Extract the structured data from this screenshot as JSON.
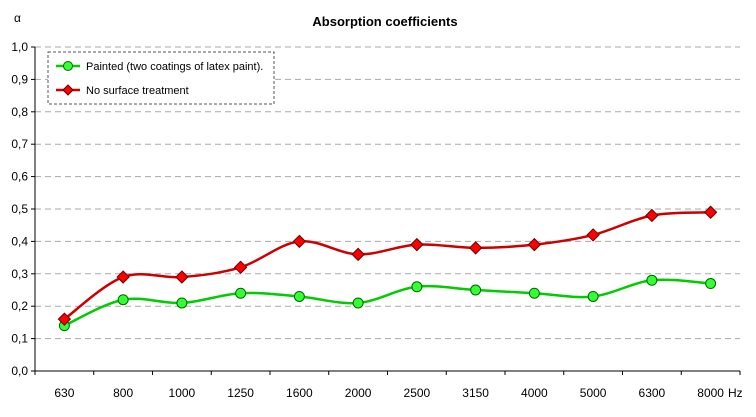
{
  "chart_data": {
    "type": "line",
    "title": "Absorption coefficients",
    "ylabel": "α",
    "xlabel": "Hz",
    "categories": [
      "630",
      "800",
      "1000",
      "1250",
      "1600",
      "2000",
      "2500",
      "3150",
      "4000",
      "5000",
      "6300",
      "8000"
    ],
    "y_ticks": [
      "0,0",
      "0,1",
      "0,2",
      "0,3",
      "0,4",
      "0,5",
      "0,6",
      "0,7",
      "0,8",
      "0,9",
      "1,0"
    ],
    "ylim": [
      0,
      1
    ],
    "grid": "horizontal dashed",
    "legend_position": "top-left",
    "series": [
      {
        "name": "Painted (two coatings of latex paint).",
        "values": [
          0.14,
          0.22,
          0.21,
          0.24,
          0.23,
          0.21,
          0.26,
          0.25,
          0.24,
          0.23,
          0.28,
          0.27
        ],
        "line_color": "#00cc00",
        "marker": "circle",
        "marker_color": "#33ff33"
      },
      {
        "name": "No surface treatment",
        "values": [
          0.16,
          0.29,
          0.29,
          0.32,
          0.4,
          0.36,
          0.39,
          0.38,
          0.39,
          0.42,
          0.48,
          0.49
        ],
        "line_color": "#cc0000",
        "marker": "diamond",
        "marker_color": "#ff0000"
      }
    ]
  }
}
